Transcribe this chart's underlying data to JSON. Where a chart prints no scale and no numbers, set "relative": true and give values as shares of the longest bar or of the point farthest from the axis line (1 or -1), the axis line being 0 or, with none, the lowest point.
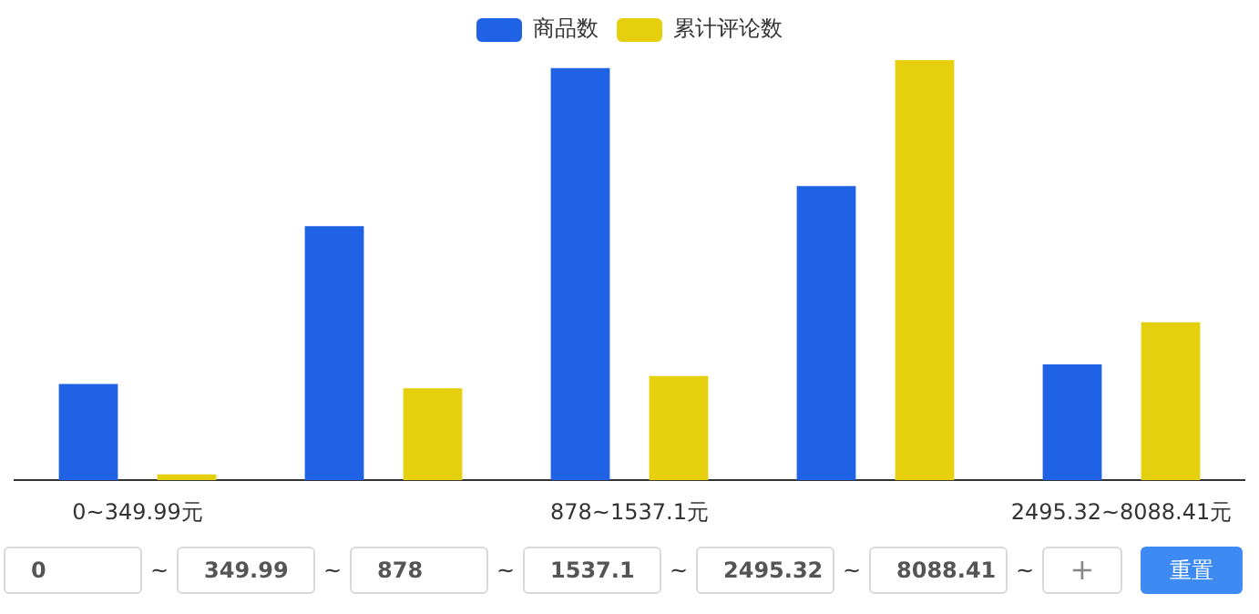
{
  "chart_data": {
    "type": "bar",
    "relative": true,
    "legend": "top",
    "grid": false,
    "categories": [
      "0~349.99元",
      null,
      "878~1537.1元",
      null,
      "2495.32~8088.41元"
    ],
    "series": [
      {
        "name": "商品数",
        "color": "#1f62e6",
        "values": [
          0.229,
          0.605,
          0.981,
          0.7,
          0.276
        ]
      },
      {
        "name": "累计评论数",
        "color": "#e6cf0c",
        "values": [
          0.014,
          0.219,
          0.248,
          1,
          0.376
        ]
      }
    ],
    "annotations": [
      "0",
      "~",
      "349.99",
      "~",
      "878",
      "~",
      "1537.1",
      "~",
      "2495.32",
      "~",
      "8088.41",
      "~",
      "+",
      "重置"
    ]
  }
}
